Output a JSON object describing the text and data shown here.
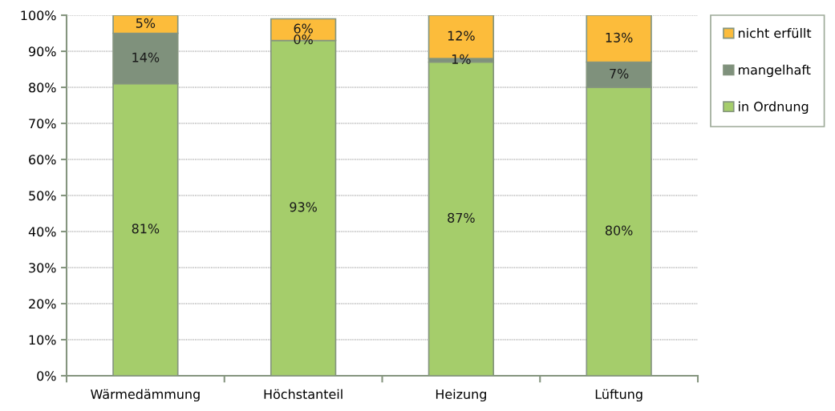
{
  "chart_data": {
    "type": "bar",
    "categories": [
      "Wärmedämmung",
      "Höchstanteil",
      "Heizung",
      "Lüftung"
    ],
    "stacked": true,
    "series": [
      {
        "name": "in Ordnung",
        "color": "#a5cd6b",
        "values": [
          81,
          93,
          87,
          80
        ],
        "value_labels": [
          "81%",
          "93%",
          "87%",
          "80%"
        ]
      },
      {
        "name": "mangelhaft",
        "color": "#7f917c",
        "values": [
          14,
          0,
          1,
          7
        ],
        "value_labels": [
          "14%",
          "0%",
          "1%",
          "7%"
        ]
      },
      {
        "name": "nicht erfüllt",
        "color": "#fcbc3b",
        "values": [
          5,
          6,
          12,
          13
        ],
        "value_labels": [
          "5%",
          "6%",
          "12%",
          "13%"
        ]
      }
    ],
    "ylim": [
      0,
      100
    ],
    "yticks": [
      {
        "value": 0,
        "label": "0%"
      },
      {
        "value": 10,
        "label": "10%"
      },
      {
        "value": 20,
        "label": "20%"
      },
      {
        "value": 30,
        "label": "30%"
      },
      {
        "value": 40,
        "label": "40%"
      },
      {
        "value": 50,
        "label": "50%"
      },
      {
        "value": 60,
        "label": "60%"
      },
      {
        "value": 70,
        "label": "70%"
      },
      {
        "value": 80,
        "label": "80%"
      },
      {
        "value": 90,
        "label": "90%"
      },
      {
        "value": 100,
        "label": "100%"
      }
    ],
    "grid": "y",
    "legend": "top right"
  }
}
